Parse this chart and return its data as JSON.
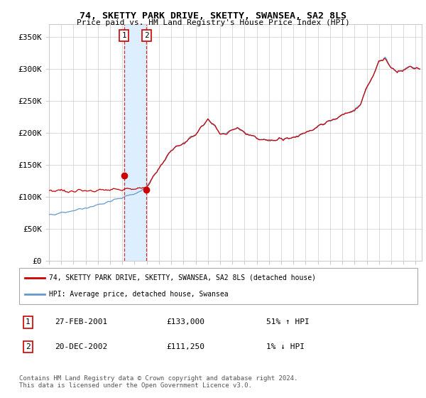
{
  "title": "74, SKETTY PARK DRIVE, SKETTY, SWANSEA, SA2 8LS",
  "subtitle": "Price paid vs. HM Land Registry's House Price Index (HPI)",
  "ylim": [
    0,
    370000
  ],
  "yticks": [
    0,
    50000,
    100000,
    150000,
    200000,
    250000,
    300000,
    350000
  ],
  "ytick_labels": [
    "£0",
    "£50K",
    "£100K",
    "£150K",
    "£200K",
    "£250K",
    "£300K",
    "£350K"
  ],
  "xstart": 1995.0,
  "xend": 2025.5,
  "transaction1": {
    "date_num": 2001.154,
    "price": 133000,
    "label": "1"
  },
  "transaction2": {
    "date_num": 2002.962,
    "price": 111250,
    "label": "2"
  },
  "hpi_color": "#6699cc",
  "price_color": "#cc0000",
  "bg_color": "#ffffff",
  "grid_color": "#cccccc",
  "highlight_color": "#ddeeff",
  "legend1_label": "74, SKETTY PARK DRIVE, SKETTY, SWANSEA, SA2 8LS (detached house)",
  "legend2_label": "HPI: Average price, detached house, Swansea",
  "table_entries": [
    {
      "num": "1",
      "date": "27-FEB-2001",
      "price": "£133,000",
      "pct": "51% ↑ HPI"
    },
    {
      "num": "2",
      "date": "20-DEC-2002",
      "price": "£111,250",
      "pct": "1% ↓ HPI"
    }
  ],
  "footer": "Contains HM Land Registry data © Crown copyright and database right 2024.\nThis data is licensed under the Open Government Licence v3.0.",
  "hpi_anchors_x": [
    1995.0,
    1995.5,
    1996.0,
    1996.5,
    1997.0,
    1997.5,
    1998.0,
    1998.5,
    1999.0,
    1999.5,
    2000.0,
    2000.5,
    2001.0,
    2001.5,
    2002.0,
    2002.5,
    2003.0,
    2003.5,
    2004.0,
    2004.5,
    2005.0,
    2005.5,
    2006.0,
    2006.5,
    2007.0,
    2007.5,
    2008.0,
    2008.5,
    2009.0,
    2009.5,
    2010.0,
    2010.5,
    2011.0,
    2011.5,
    2012.0,
    2012.5,
    2013.0,
    2013.5,
    2014.0,
    2014.5,
    2015.0,
    2015.5,
    2016.0,
    2016.5,
    2017.0,
    2017.5,
    2018.0,
    2018.5,
    2019.0,
    2019.5,
    2020.0,
    2020.5,
    2021.0,
    2021.5,
    2022.0,
    2022.5,
    2023.0,
    2023.5,
    2024.0,
    2024.5,
    2025.3
  ],
  "hpi_anchors_y": [
    72000,
    73000,
    74500,
    76000,
    78000,
    80000,
    82000,
    84000,
    87000,
    90000,
    93000,
    96000,
    99000,
    102000,
    105000,
    108000,
    118000,
    130000,
    145000,
    158000,
    172000,
    178000,
    185000,
    190000,
    198000,
    210000,
    220000,
    212000,
    198000,
    200000,
    204000,
    206000,
    200000,
    196000,
    192000,
    190000,
    188000,
    188000,
    190000,
    192000,
    194000,
    196000,
    200000,
    204000,
    210000,
    214000,
    218000,
    222000,
    228000,
    232000,
    236000,
    245000,
    268000,
    288000,
    310000,
    318000,
    302000,
    295000,
    298000,
    303000,
    300000
  ]
}
